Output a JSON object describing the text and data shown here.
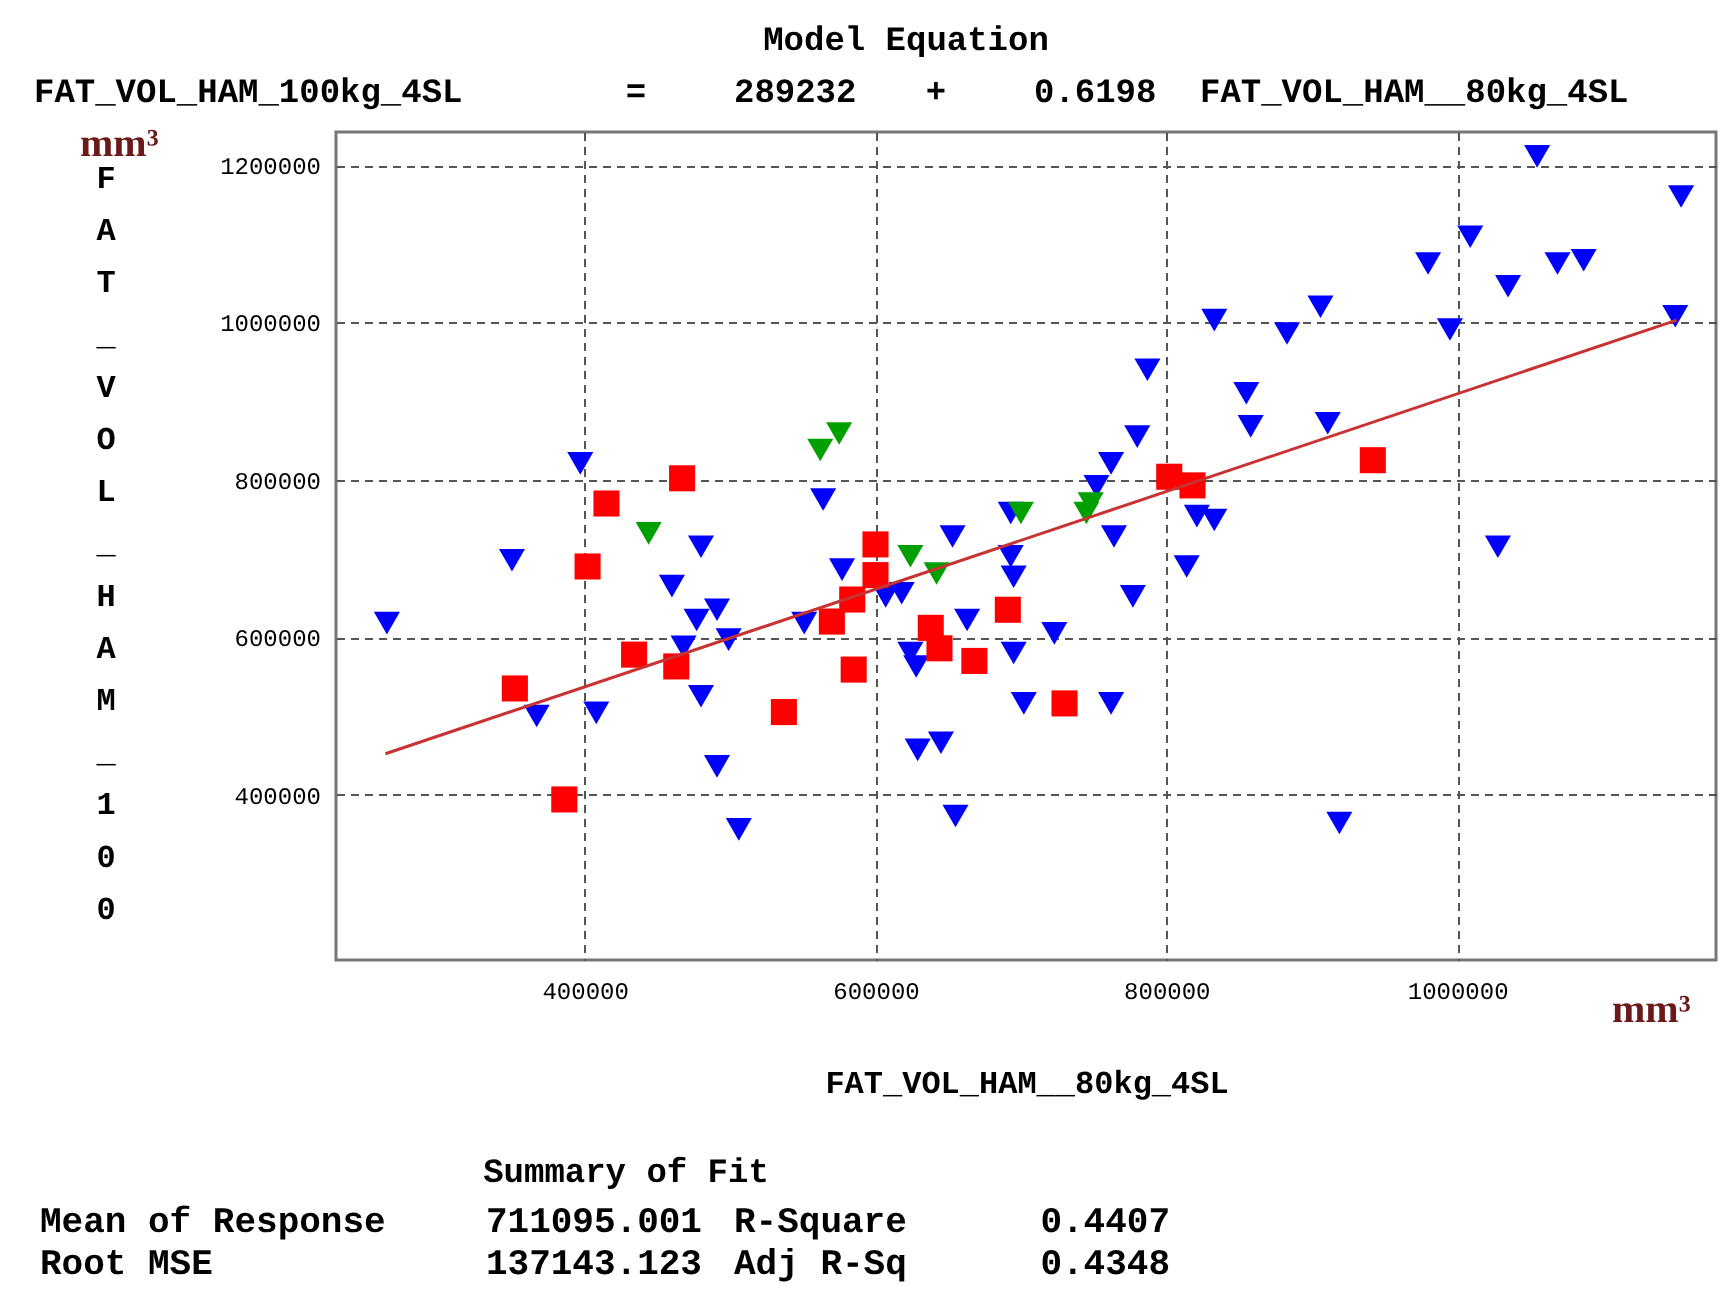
{
  "chart_data": {
    "type": "scatter",
    "title": "Model Equation",
    "subtitle": "FAT_VOL_HAM_100kg_4SL = 289232 + 0.6198 FAT_VOL_HAM__80kg_4SL",
    "xlabel": "FAT_VOL_HAM__80kg_4SL",
    "ylabel": "FAT_VOL_HAM_100",
    "xlim": [
      229000,
      1178000
    ],
    "ylim": [
      190000,
      1242000
    ],
    "xticks": [
      400000,
      600000,
      800000,
      1000000
    ],
    "yticks": [
      400000,
      600000,
      800000,
      1000000,
      1200000
    ],
    "grid": true,
    "annotations": [
      "mm³",
      "mm³",
      "Summary of Fit",
      "Mean of Response",
      "711095.001",
      "R-Square",
      "0.4407",
      "Root MSE",
      "137143.123",
      "Adj R-Sq",
      "0.4348"
    ],
    "series": [
      {
        "marker": "triangle",
        "color": "#0000ff",
        "x": [
          264000,
          350000,
          367000,
          408000,
          397000,
          460000,
          480000,
          477000,
          491000,
          499000,
          468000,
          480000,
          491000,
          506000,
          564000,
          577000,
          551000,
          607000,
          618000,
          624000,
          628000,
          629000,
          645000,
          653000,
          655000,
          663000,
          693000,
          693000,
          695000,
          695000,
          702000,
          723000,
          762000,
          762000,
          752000,
          764000,
          777000,
          814000,
          821000,
          833000,
          1028000,
          919000,
          1055000,
          1154000,
          1009000,
          980000,
          1069000,
          1087000,
          1035000,
          1150000,
          995000,
          833000,
          883000,
          906000,
          787000,
          855000,
          858000,
          911000,
          780000
        ],
        "values": [
          618000,
          698000,
          500000,
          504000,
          821000,
          665000,
          715000,
          622000,
          635000,
          597000,
          588000,
          525000,
          436000,
          356000,
          775000,
          686000,
          618000,
          652000,
          656000,
          580000,
          563000,
          457000,
          466000,
          728000,
          373000,
          622000,
          758000,
          703000,
          677000,
          580000,
          516000,
          605000,
          516000,
          821000,
          792000,
          728000,
          652000,
          690000,
          754000,
          749000,
          715000,
          364000,
          1211000,
          1160000,
          1109000,
          1075000,
          1075000,
          1079000,
          1046000,
          1008000,
          991000,
          1003000,
          986000,
          1020000,
          940000,
          910000,
          868000,
          872000,
          855000
        ]
      },
      {
        "marker": "square",
        "color": "#ff0000",
        "x": [
          467000,
          415000,
          402000,
          352000,
          386000,
          434000,
          463000,
          537000,
          570000,
          584000,
          585000,
          600000,
          600000,
          638000,
          644000,
          668000,
          691000,
          730000,
          802000,
          818000,
          942000
        ],
        "values": [
          802000,
          770000,
          690000,
          535000,
          394000,
          578000,
          563000,
          505000,
          620000,
          648000,
          559000,
          718000,
          679000,
          612000,
          586000,
          570000,
          635000,
          516000,
          804000,
          793000,
          825000
        ]
      },
      {
        "marker": "triangle",
        "color": "#00a000",
        "x": [
          562000,
          575000,
          444000,
          624000,
          642000,
          700000,
          748000,
          745000
        ],
        "values": [
          838000,
          859000,
          732000,
          703000,
          681000,
          758000,
          770000,
          758000
        ]
      },
      {
        "type": "line",
        "line_style": "solid",
        "color": "#c83232",
        "x": [
          263000,
          1151000
        ],
        "values": [
          452000,
          1003000
        ]
      }
    ]
  }
}
